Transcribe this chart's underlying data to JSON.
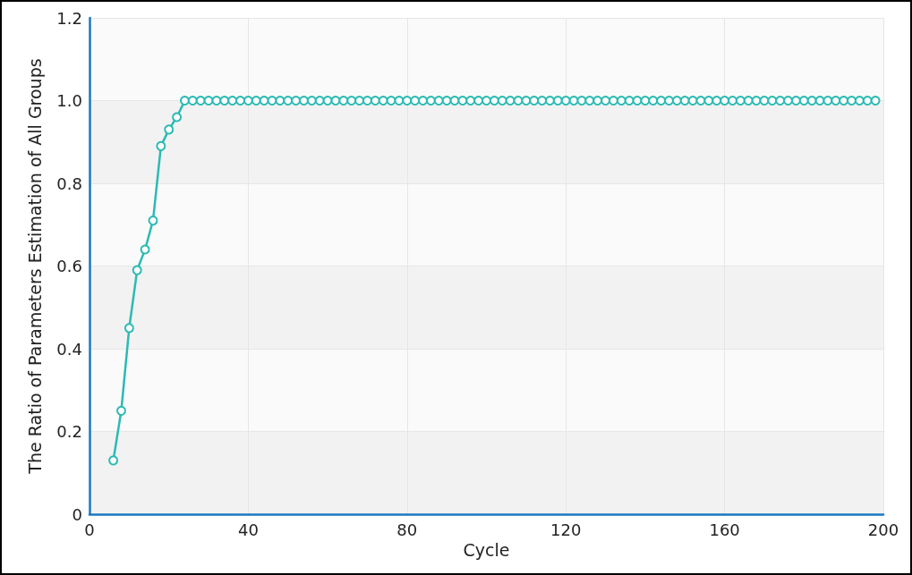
{
  "chart_data": {
    "type": "line",
    "xlabel": "Cycle",
    "ylabel": "The Ratio of Parameters Estimation of All Groups",
    "x": [
      6,
      8,
      10,
      12,
      14,
      16,
      18,
      20,
      22,
      24,
      26,
      28,
      30,
      32,
      34,
      36,
      38,
      40,
      42,
      44,
      46,
      48,
      50,
      52,
      54,
      56,
      58,
      60,
      62,
      64,
      66,
      68,
      70,
      72,
      74,
      76,
      78,
      80,
      82,
      84,
      86,
      88,
      90,
      92,
      94,
      96,
      98,
      100,
      102,
      104,
      106,
      108,
      110,
      112,
      114,
      116,
      118,
      120,
      122,
      124,
      126,
      128,
      130,
      132,
      134,
      136,
      138,
      140,
      142,
      144,
      146,
      148,
      150,
      152,
      154,
      156,
      158,
      160,
      162,
      164,
      166,
      168,
      170,
      172,
      174,
      176,
      178,
      180,
      182,
      184,
      186,
      188,
      190,
      192,
      194,
      196,
      198
    ],
    "series": [
      {
        "color": "#2bbab4",
        "values": [
          0.13,
          0.25,
          0.45,
          0.59,
          0.64,
          0.71,
          0.89,
          0.93,
          0.96,
          1,
          1,
          1,
          1,
          1,
          1,
          1,
          1,
          1,
          1,
          1,
          1,
          1,
          1,
          1,
          1,
          1,
          1,
          1,
          1,
          1,
          1,
          1,
          1,
          1,
          1,
          1,
          1,
          1,
          1,
          1,
          1,
          1,
          1,
          1,
          1,
          1,
          1,
          1,
          1,
          1,
          1,
          1,
          1,
          1,
          1,
          1,
          1,
          1,
          1,
          1,
          1,
          1,
          1,
          1,
          1,
          1,
          1,
          1,
          1,
          1,
          1,
          1,
          1,
          1,
          1,
          1,
          1,
          1,
          1,
          1,
          1,
          1,
          1,
          1,
          1,
          1,
          1,
          1,
          1,
          1,
          1,
          1,
          1,
          1,
          1,
          1,
          1
        ]
      }
    ],
    "xlim": [
      0,
      200
    ],
    "xticks": [
      0,
      40,
      80,
      120,
      160,
      200
    ],
    "ylim": [
      0,
      1.2
    ],
    "yticks": [
      0,
      0.2,
      0.4,
      0.6,
      0.8,
      {
        "value": 1,
        "label": "1.0"
      },
      1.2
    ],
    "grid": true,
    "marker": "circle",
    "line_style": "solid"
  }
}
